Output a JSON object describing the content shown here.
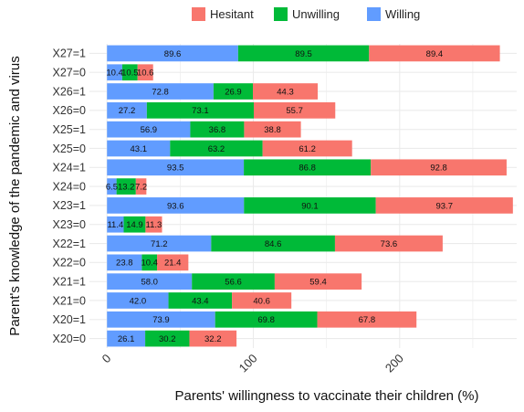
{
  "chart_data": {
    "type": "bar",
    "orientation": "horizontal",
    "stacked": true,
    "xlabel": "Parents' willingness to vaccinate their children (%)",
    "ylabel": "Parent's knowledge of the pandemic and virus",
    "xlim": [
      -12,
      280
    ],
    "xticks": [
      0,
      100,
      200
    ],
    "grid": true,
    "legend_position": "top",
    "categories": [
      "X20=0",
      "X20=1",
      "X21=0",
      "X21=1",
      "X22=0",
      "X22=1",
      "X23=0",
      "X23=1",
      "X24=0",
      "X24=1",
      "X25=0",
      "X25=1",
      "X26=0",
      "X26=1",
      "X27=0",
      "X27=1"
    ],
    "series": [
      {
        "name": "Willing",
        "color": "#619CFF",
        "values": [
          26.1,
          73.9,
          42.0,
          58.0,
          23.8,
          71.2,
          11.4,
          93.6,
          6.5,
          93.5,
          43.1,
          56.9,
          27.2,
          72.8,
          10.4,
          89.6
        ],
        "labels": [
          "26.1",
          "73.9",
          "42.0",
          "58.0",
          "23.8",
          "71.2",
          "11.4",
          "93.6",
          "6.5",
          "93.5",
          "43.1",
          "56.9",
          "27.2",
          "72.8",
          "10.4",
          "89.6"
        ]
      },
      {
        "name": "Unwilling",
        "color": "#00BA38",
        "values": [
          30.2,
          69.8,
          43.4,
          56.6,
          10.4,
          84.6,
          14.9,
          90.1,
          13.2,
          86.8,
          63.2,
          36.8,
          73.1,
          26.9,
          10.5,
          89.5
        ],
        "labels": [
          "30.2",
          "69.8",
          "43.4",
          "56.6",
          "10.4",
          "84.6",
          "14.9",
          "90.1",
          "13.2",
          "86.8",
          "63.2",
          "36.8",
          "73.1",
          "26.9",
          "10.5",
          "89.5"
        ]
      },
      {
        "name": "Hesitant",
        "color": "#F8766D",
        "values": [
          32.2,
          67.8,
          40.6,
          59.4,
          21.4,
          73.6,
          11.3,
          93.7,
          7.2,
          92.8,
          61.2,
          38.8,
          55.7,
          44.3,
          10.6,
          89.4
        ],
        "labels": [
          "32.2",
          "67.8",
          "40.6",
          "59.4",
          "21.4",
          "73.6",
          "11.3",
          "93.7",
          "7.2",
          "92.8",
          "61.2",
          "38.8",
          "55.7",
          "44.3",
          "10.6",
          "89.4"
        ]
      }
    ],
    "legend_order": [
      "Hesitant",
      "Unwilling",
      "Willing"
    ],
    "colors": {
      "panel_background": "#FFFFFF",
      "grid": "#EBEBEB"
    }
  }
}
